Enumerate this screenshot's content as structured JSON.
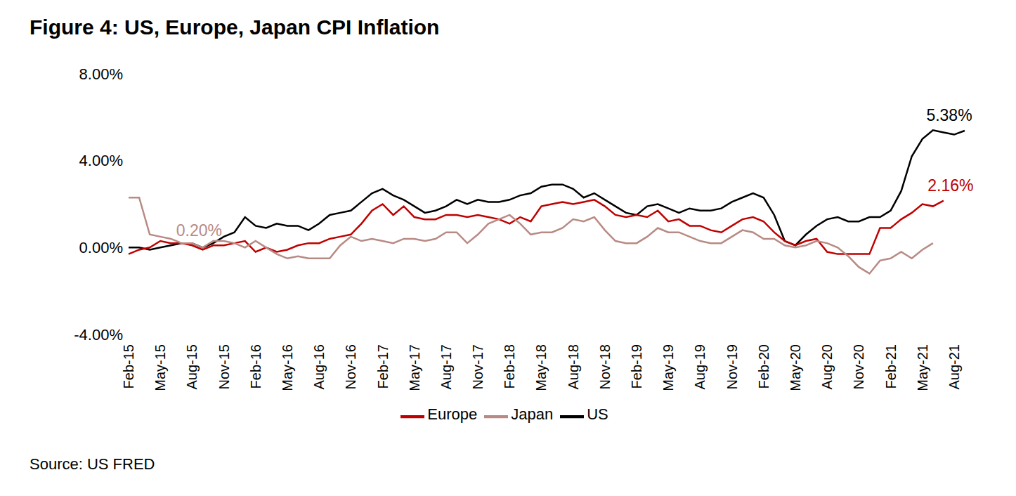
{
  "chart_data": {
    "type": "line",
    "title": "Figure 4: US, Europe, Japan CPI Inflation",
    "source": "Source: US FRED",
    "categories": [
      "Feb-15",
      null,
      null,
      "May-15",
      null,
      null,
      "Aug-15",
      null,
      null,
      "Nov-15",
      null,
      null,
      "Feb-16",
      null,
      null,
      "May-16",
      null,
      null,
      "Aug-16",
      null,
      null,
      "Nov-16",
      null,
      null,
      "Feb-17",
      null,
      null,
      "May-17",
      null,
      null,
      "Aug-17",
      null,
      null,
      "Nov-17",
      null,
      null,
      "Feb-18",
      null,
      null,
      "May-18",
      null,
      null,
      "Aug-18",
      null,
      null,
      "Nov-18",
      null,
      null,
      "Feb-19",
      null,
      null,
      "May-19",
      null,
      null,
      "Aug-19",
      null,
      null,
      "Nov-19",
      null,
      null,
      "Feb-20",
      null,
      null,
      "May-20",
      null,
      null,
      "Aug-20",
      null,
      null,
      "Nov-20",
      null,
      null,
      "Feb-21",
      null,
      null,
      "May-21",
      null,
      null,
      "Aug-21",
      null
    ],
    "series": [
      {
        "name": "US",
        "color": "#000000",
        "values": [
          0.0,
          0.0,
          -0.1,
          0.0,
          0.1,
          0.2,
          0.2,
          0.0,
          0.2,
          0.5,
          0.7,
          1.4,
          1.0,
          0.9,
          1.1,
          1.0,
          1.0,
          0.8,
          1.1,
          1.5,
          1.6,
          1.7,
          2.1,
          2.5,
          2.7,
          2.4,
          2.2,
          1.9,
          1.6,
          1.7,
          1.9,
          2.2,
          2.0,
          2.2,
          2.1,
          2.1,
          2.2,
          2.4,
          2.5,
          2.8,
          2.9,
          2.9,
          2.7,
          2.3,
          2.5,
          2.2,
          1.9,
          1.6,
          1.5,
          1.9,
          2.0,
          1.8,
          1.6,
          1.8,
          1.7,
          1.7,
          1.8,
          2.1,
          2.3,
          2.5,
          2.3,
          1.5,
          0.3,
          0.1,
          0.6,
          1.0,
          1.3,
          1.4,
          1.2,
          1.2,
          1.4,
          1.4,
          1.7,
          2.6,
          4.2,
          5.0,
          5.4,
          5.3,
          5.2,
          5.38
        ]
      },
      {
        "name": "Europe",
        "color": "#c00000",
        "values": [
          -0.3,
          -0.1,
          0.0,
          0.3,
          0.2,
          0.2,
          0.1,
          -0.1,
          0.1,
          0.1,
          0.2,
          0.3,
          -0.2,
          0.0,
          -0.2,
          -0.1,
          0.1,
          0.2,
          0.2,
          0.4,
          0.5,
          0.6,
          1.1,
          1.7,
          2.0,
          1.5,
          1.9,
          1.4,
          1.3,
          1.3,
          1.5,
          1.5,
          1.4,
          1.5,
          1.4,
          1.3,
          1.1,
          1.4,
          1.2,
          1.9,
          2.0,
          2.1,
          2.0,
          2.1,
          2.2,
          1.9,
          1.5,
          1.4,
          1.5,
          1.4,
          1.7,
          1.2,
          1.3,
          1.0,
          1.0,
          0.8,
          0.7,
          1.0,
          1.3,
          1.4,
          1.2,
          0.7,
          0.3,
          0.1,
          0.3,
          0.4,
          -0.2,
          -0.3,
          -0.3,
          -0.3,
          -0.3,
          0.9,
          0.9,
          1.3,
          1.6,
          2.0,
          1.9,
          2.16,
          null,
          null
        ]
      },
      {
        "name": "Japan",
        "color": "#b88a84",
        "values": [
          2.3,
          2.3,
          0.6,
          0.5,
          0.4,
          0.2,
          0.2,
          0.0,
          0.3,
          0.3,
          0.2,
          0.0,
          0.3,
          0.0,
          -0.3,
          -0.5,
          -0.4,
          -0.5,
          -0.5,
          -0.5,
          0.1,
          0.5,
          0.3,
          0.4,
          0.3,
          0.2,
          0.4,
          0.4,
          0.3,
          0.4,
          0.7,
          0.7,
          0.2,
          0.6,
          1.1,
          1.3,
          1.5,
          1.1,
          0.6,
          0.7,
          0.7,
          0.9,
          1.3,
          1.2,
          1.4,
          0.8,
          0.3,
          0.2,
          0.2,
          0.5,
          0.9,
          0.7,
          0.7,
          0.5,
          0.3,
          0.2,
          0.2,
          0.5,
          0.8,
          0.7,
          0.4,
          0.4,
          0.1,
          0.0,
          0.1,
          0.3,
          0.2,
          0.0,
          -0.4,
          -0.9,
          -1.2,
          -0.6,
          -0.5,
          -0.2,
          -0.5,
          -0.1,
          0.2,
          null,
          null,
          null
        ]
      }
    ],
    "ylim": [
      -4,
      8
    ],
    "yticks": [
      {
        "value": -4,
        "label": "-4.00%"
      },
      {
        "value": 0,
        "label": "0.00%"
      },
      {
        "value": 4,
        "label": "4.00%"
      },
      {
        "value": 8,
        "label": "8.00%"
      }
    ],
    "grid": false,
    "legend": "bottom",
    "annotations": [
      {
        "series": "US",
        "text": "5.38%",
        "value": 5.38
      },
      {
        "series": "Europe",
        "text": "2.16%",
        "value": 2.16
      },
      {
        "series": "Japan",
        "text": "0.20%",
        "value": 0.2
      }
    ]
  }
}
